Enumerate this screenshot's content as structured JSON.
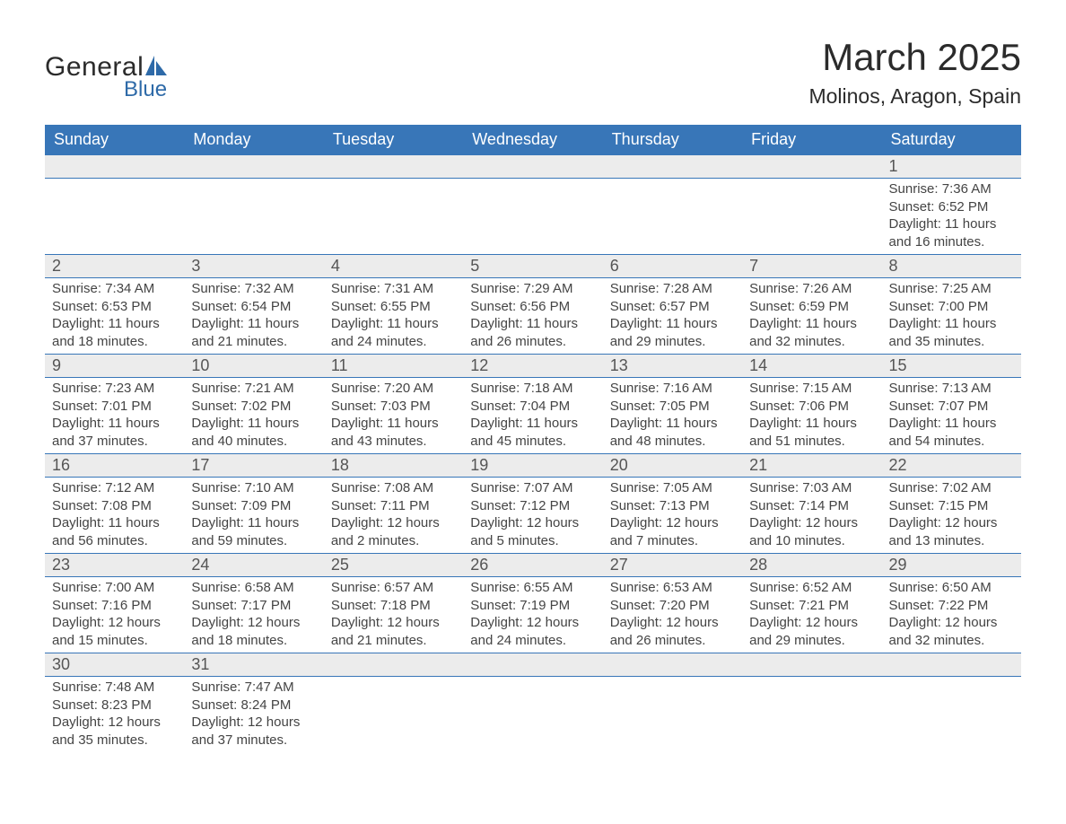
{
  "brand": {
    "word1": "General",
    "word2": "Blue",
    "text_color": "#2b2b2b",
    "accent_color": "#2e6aa8"
  },
  "title": {
    "month": "March 2025",
    "location": "Molinos, Aragon, Spain",
    "month_fontsize": 42,
    "location_fontsize": 23
  },
  "colors": {
    "header_bg": "#3876b8",
    "header_text": "#ffffff",
    "daynum_bg": "#ececec",
    "row_divider": "#3876b8",
    "body_text": "#444444",
    "page_bg": "#ffffff"
  },
  "calendar": {
    "type": "table",
    "columns": [
      "Sunday",
      "Monday",
      "Tuesday",
      "Wednesday",
      "Thursday",
      "Friday",
      "Saturday"
    ],
    "weeks": [
      [
        null,
        null,
        null,
        null,
        null,
        null,
        {
          "n": "1",
          "sunrise": "Sunrise: 7:36 AM",
          "sunset": "Sunset: 6:52 PM",
          "day1": "Daylight: 11 hours",
          "day2": "and 16 minutes."
        }
      ],
      [
        {
          "n": "2",
          "sunrise": "Sunrise: 7:34 AM",
          "sunset": "Sunset: 6:53 PM",
          "day1": "Daylight: 11 hours",
          "day2": "and 18 minutes."
        },
        {
          "n": "3",
          "sunrise": "Sunrise: 7:32 AM",
          "sunset": "Sunset: 6:54 PM",
          "day1": "Daylight: 11 hours",
          "day2": "and 21 minutes."
        },
        {
          "n": "4",
          "sunrise": "Sunrise: 7:31 AM",
          "sunset": "Sunset: 6:55 PM",
          "day1": "Daylight: 11 hours",
          "day2": "and 24 minutes."
        },
        {
          "n": "5",
          "sunrise": "Sunrise: 7:29 AM",
          "sunset": "Sunset: 6:56 PM",
          "day1": "Daylight: 11 hours",
          "day2": "and 26 minutes."
        },
        {
          "n": "6",
          "sunrise": "Sunrise: 7:28 AM",
          "sunset": "Sunset: 6:57 PM",
          "day1": "Daylight: 11 hours",
          "day2": "and 29 minutes."
        },
        {
          "n": "7",
          "sunrise": "Sunrise: 7:26 AM",
          "sunset": "Sunset: 6:59 PM",
          "day1": "Daylight: 11 hours",
          "day2": "and 32 minutes."
        },
        {
          "n": "8",
          "sunrise": "Sunrise: 7:25 AM",
          "sunset": "Sunset: 7:00 PM",
          "day1": "Daylight: 11 hours",
          "day2": "and 35 minutes."
        }
      ],
      [
        {
          "n": "9",
          "sunrise": "Sunrise: 7:23 AM",
          "sunset": "Sunset: 7:01 PM",
          "day1": "Daylight: 11 hours",
          "day2": "and 37 minutes."
        },
        {
          "n": "10",
          "sunrise": "Sunrise: 7:21 AM",
          "sunset": "Sunset: 7:02 PM",
          "day1": "Daylight: 11 hours",
          "day2": "and 40 minutes."
        },
        {
          "n": "11",
          "sunrise": "Sunrise: 7:20 AM",
          "sunset": "Sunset: 7:03 PM",
          "day1": "Daylight: 11 hours",
          "day2": "and 43 minutes."
        },
        {
          "n": "12",
          "sunrise": "Sunrise: 7:18 AM",
          "sunset": "Sunset: 7:04 PM",
          "day1": "Daylight: 11 hours",
          "day2": "and 45 minutes."
        },
        {
          "n": "13",
          "sunrise": "Sunrise: 7:16 AM",
          "sunset": "Sunset: 7:05 PM",
          "day1": "Daylight: 11 hours",
          "day2": "and 48 minutes."
        },
        {
          "n": "14",
          "sunrise": "Sunrise: 7:15 AM",
          "sunset": "Sunset: 7:06 PM",
          "day1": "Daylight: 11 hours",
          "day2": "and 51 minutes."
        },
        {
          "n": "15",
          "sunrise": "Sunrise: 7:13 AM",
          "sunset": "Sunset: 7:07 PM",
          "day1": "Daylight: 11 hours",
          "day2": "and 54 minutes."
        }
      ],
      [
        {
          "n": "16",
          "sunrise": "Sunrise: 7:12 AM",
          "sunset": "Sunset: 7:08 PM",
          "day1": "Daylight: 11 hours",
          "day2": "and 56 minutes."
        },
        {
          "n": "17",
          "sunrise": "Sunrise: 7:10 AM",
          "sunset": "Sunset: 7:09 PM",
          "day1": "Daylight: 11 hours",
          "day2": "and 59 minutes."
        },
        {
          "n": "18",
          "sunrise": "Sunrise: 7:08 AM",
          "sunset": "Sunset: 7:11 PM",
          "day1": "Daylight: 12 hours",
          "day2": "and 2 minutes."
        },
        {
          "n": "19",
          "sunrise": "Sunrise: 7:07 AM",
          "sunset": "Sunset: 7:12 PM",
          "day1": "Daylight: 12 hours",
          "day2": "and 5 minutes."
        },
        {
          "n": "20",
          "sunrise": "Sunrise: 7:05 AM",
          "sunset": "Sunset: 7:13 PM",
          "day1": "Daylight: 12 hours",
          "day2": "and 7 minutes."
        },
        {
          "n": "21",
          "sunrise": "Sunrise: 7:03 AM",
          "sunset": "Sunset: 7:14 PM",
          "day1": "Daylight: 12 hours",
          "day2": "and 10 minutes."
        },
        {
          "n": "22",
          "sunrise": "Sunrise: 7:02 AM",
          "sunset": "Sunset: 7:15 PM",
          "day1": "Daylight: 12 hours",
          "day2": "and 13 minutes."
        }
      ],
      [
        {
          "n": "23",
          "sunrise": "Sunrise: 7:00 AM",
          "sunset": "Sunset: 7:16 PM",
          "day1": "Daylight: 12 hours",
          "day2": "and 15 minutes."
        },
        {
          "n": "24",
          "sunrise": "Sunrise: 6:58 AM",
          "sunset": "Sunset: 7:17 PM",
          "day1": "Daylight: 12 hours",
          "day2": "and 18 minutes."
        },
        {
          "n": "25",
          "sunrise": "Sunrise: 6:57 AM",
          "sunset": "Sunset: 7:18 PM",
          "day1": "Daylight: 12 hours",
          "day2": "and 21 minutes."
        },
        {
          "n": "26",
          "sunrise": "Sunrise: 6:55 AM",
          "sunset": "Sunset: 7:19 PM",
          "day1": "Daylight: 12 hours",
          "day2": "and 24 minutes."
        },
        {
          "n": "27",
          "sunrise": "Sunrise: 6:53 AM",
          "sunset": "Sunset: 7:20 PM",
          "day1": "Daylight: 12 hours",
          "day2": "and 26 minutes."
        },
        {
          "n": "28",
          "sunrise": "Sunrise: 6:52 AM",
          "sunset": "Sunset: 7:21 PM",
          "day1": "Daylight: 12 hours",
          "day2": "and 29 minutes."
        },
        {
          "n": "29",
          "sunrise": "Sunrise: 6:50 AM",
          "sunset": "Sunset: 7:22 PM",
          "day1": "Daylight: 12 hours",
          "day2": "and 32 minutes."
        }
      ],
      [
        {
          "n": "30",
          "sunrise": "Sunrise: 7:48 AM",
          "sunset": "Sunset: 8:23 PM",
          "day1": "Daylight: 12 hours",
          "day2": "and 35 minutes."
        },
        {
          "n": "31",
          "sunrise": "Sunrise: 7:47 AM",
          "sunset": "Sunset: 8:24 PM",
          "day1": "Daylight: 12 hours",
          "day2": "and 37 minutes."
        },
        null,
        null,
        null,
        null,
        null
      ]
    ]
  }
}
